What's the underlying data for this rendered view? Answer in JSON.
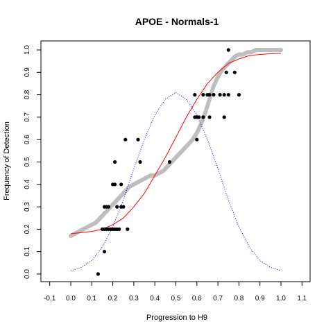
{
  "chart_data": {
    "type": "scatter",
    "title": "APOE - Normals-1",
    "xlabel": "Progression to H9",
    "ylabel": "Frequency of Detection",
    "xlim": [
      -0.1,
      1.1
    ],
    "ylim": [
      0.0,
      1.0
    ],
    "x_ticks": [
      "-0.1",
      "0.0",
      "0.1",
      "0.2",
      "0.3",
      "0.4",
      "0.5",
      "0.6",
      "0.7",
      "0.8",
      "0.9",
      "1.0",
      "1.1"
    ],
    "y_ticks": [
      "0.0",
      "0.1",
      "0.2",
      "0.3",
      "0.4",
      "0.5",
      "0.6",
      "0.7",
      "0.8",
      "0.9",
      "1.0"
    ],
    "grid": false,
    "legend": "none",
    "series": [
      {
        "kind": "observed-points",
        "color": "#000000",
        "points": [
          [
            0.13,
            0.0
          ],
          [
            0.16,
            0.1
          ],
          [
            0.15,
            0.2
          ],
          [
            0.16,
            0.2
          ],
          [
            0.17,
            0.2
          ],
          [
            0.18,
            0.2
          ],
          [
            0.19,
            0.2
          ],
          [
            0.2,
            0.2
          ],
          [
            0.21,
            0.2
          ],
          [
            0.22,
            0.2
          ],
          [
            0.23,
            0.2
          ],
          [
            0.27,
            0.2
          ],
          [
            0.16,
            0.3
          ],
          [
            0.17,
            0.3
          ],
          [
            0.18,
            0.3
          ],
          [
            0.22,
            0.3
          ],
          [
            0.24,
            0.3
          ],
          [
            0.25,
            0.3
          ],
          [
            0.2,
            0.4
          ],
          [
            0.21,
            0.4
          ],
          [
            0.24,
            0.4
          ],
          [
            0.21,
            0.5
          ],
          [
            0.33,
            0.5
          ],
          [
            0.47,
            0.5
          ],
          [
            0.26,
            0.6
          ],
          [
            0.32,
            0.6
          ],
          [
            0.6,
            0.6
          ],
          [
            0.59,
            0.7
          ],
          [
            0.6,
            0.7
          ],
          [
            0.61,
            0.7
          ],
          [
            0.63,
            0.7
          ],
          [
            0.66,
            0.7
          ],
          [
            0.73,
            0.7
          ],
          [
            0.59,
            0.8
          ],
          [
            0.63,
            0.8
          ],
          [
            0.65,
            0.8
          ],
          [
            0.66,
            0.8
          ],
          [
            0.68,
            0.8
          ],
          [
            0.71,
            0.8
          ],
          [
            0.73,
            0.8
          ],
          [
            0.75,
            0.8
          ],
          [
            0.8,
            0.8
          ],
          [
            0.74,
            0.9
          ],
          [
            0.78,
            0.9
          ],
          [
            0.75,
            1.0
          ]
        ]
      },
      {
        "kind": "cumulative-curve",
        "color": "#bebebe",
        "points": [
          [
            0.0,
            0.17
          ],
          [
            0.02,
            0.18
          ],
          [
            0.04,
            0.19
          ],
          [
            0.06,
            0.2
          ],
          [
            0.08,
            0.21
          ],
          [
            0.1,
            0.22
          ],
          [
            0.12,
            0.23
          ],
          [
            0.14,
            0.25
          ],
          [
            0.16,
            0.27
          ],
          [
            0.18,
            0.29
          ],
          [
            0.2,
            0.31
          ],
          [
            0.22,
            0.33
          ],
          [
            0.24,
            0.35
          ],
          [
            0.26,
            0.37
          ],
          [
            0.28,
            0.39
          ],
          [
            0.3,
            0.4
          ],
          [
            0.32,
            0.41
          ],
          [
            0.34,
            0.42
          ],
          [
            0.36,
            0.43
          ],
          [
            0.38,
            0.44
          ],
          [
            0.4,
            0.44
          ],
          [
            0.42,
            0.45
          ],
          [
            0.44,
            0.46
          ],
          [
            0.46,
            0.48
          ],
          [
            0.48,
            0.5
          ],
          [
            0.5,
            0.52
          ],
          [
            0.52,
            0.54
          ],
          [
            0.54,
            0.56
          ],
          [
            0.56,
            0.58
          ],
          [
            0.58,
            0.6
          ],
          [
            0.6,
            0.63
          ],
          [
            0.62,
            0.67
          ],
          [
            0.64,
            0.72
          ],
          [
            0.66,
            0.78
          ],
          [
            0.68,
            0.84
          ],
          [
            0.7,
            0.88
          ],
          [
            0.72,
            0.91
          ],
          [
            0.74,
            0.93
          ],
          [
            0.76,
            0.95
          ],
          [
            0.78,
            0.97
          ],
          [
            0.8,
            0.98
          ],
          [
            0.82,
            0.98
          ],
          [
            0.84,
            0.99
          ],
          [
            0.86,
            0.99
          ],
          [
            0.88,
            1.0
          ],
          [
            0.9,
            1.0
          ],
          [
            0.95,
            1.0
          ],
          [
            1.0,
            1.0
          ]
        ]
      },
      {
        "kind": "fitted-sigmoid",
        "color": "#ff0000",
        "points": [
          [
            0.0,
            0.18
          ],
          [
            0.05,
            0.185
          ],
          [
            0.1,
            0.19
          ],
          [
            0.15,
            0.2
          ],
          [
            0.2,
            0.22
          ],
          [
            0.25,
            0.25
          ],
          [
            0.3,
            0.3
          ],
          [
            0.35,
            0.36
          ],
          [
            0.4,
            0.44
          ],
          [
            0.45,
            0.52
          ],
          [
            0.5,
            0.61
          ],
          [
            0.55,
            0.7
          ],
          [
            0.6,
            0.78
          ],
          [
            0.65,
            0.85
          ],
          [
            0.7,
            0.9
          ],
          [
            0.75,
            0.94
          ],
          [
            0.8,
            0.96
          ],
          [
            0.85,
            0.975
          ],
          [
            0.9,
            0.98
          ],
          [
            0.95,
            0.983
          ],
          [
            1.0,
            0.985
          ]
        ]
      },
      {
        "kind": "density-curve",
        "color": "#0000ff",
        "points": [
          [
            0.0,
            0.015
          ],
          [
            0.05,
            0.03
          ],
          [
            0.1,
            0.06
          ],
          [
            0.15,
            0.12
          ],
          [
            0.2,
            0.21
          ],
          [
            0.25,
            0.33
          ],
          [
            0.3,
            0.47
          ],
          [
            0.35,
            0.6
          ],
          [
            0.4,
            0.71
          ],
          [
            0.45,
            0.78
          ],
          [
            0.5,
            0.81
          ],
          [
            0.55,
            0.78
          ],
          [
            0.6,
            0.71
          ],
          [
            0.65,
            0.6
          ],
          [
            0.7,
            0.47
          ],
          [
            0.75,
            0.33
          ],
          [
            0.8,
            0.21
          ],
          [
            0.85,
            0.12
          ],
          [
            0.9,
            0.06
          ],
          [
            0.95,
            0.03
          ],
          [
            1.0,
            0.015
          ]
        ]
      }
    ]
  }
}
